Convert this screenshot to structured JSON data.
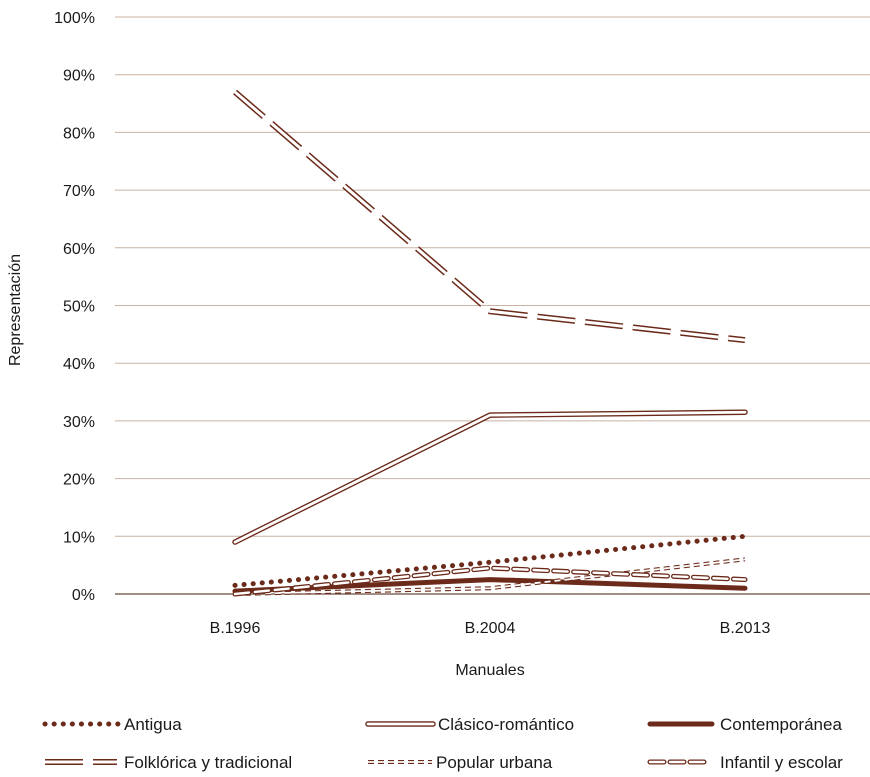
{
  "colors": {
    "series": "#6b2a1a",
    "grid": "#c8b2a2",
    "text": "#1a1a1a"
  },
  "chart_data": {
    "type": "line",
    "title": "",
    "xlabel": "Manuales",
    "ylabel": "Representación",
    "categories": [
      "B.1996",
      "B.2004",
      "B.2013"
    ],
    "ylim": [
      0,
      100
    ],
    "y_ticks": [
      0,
      10,
      20,
      30,
      40,
      50,
      60,
      70,
      80,
      90,
      100
    ],
    "y_tick_labels": [
      "0%",
      "10%",
      "20%",
      "30%",
      "40%",
      "50%",
      "60%",
      "70%",
      "80%",
      "90%",
      "100%"
    ],
    "grid": true,
    "legend_position": "bottom",
    "series": [
      {
        "name": "Antigua",
        "style": "dotted",
        "values": [
          1.5,
          5.5,
          10
        ]
      },
      {
        "name": "Clásico-romántico",
        "style": "double-solid",
        "values": [
          9,
          31,
          31.5
        ]
      },
      {
        "name": "Contemporánea",
        "style": "thick-solid",
        "values": [
          0.5,
          2.5,
          1
        ]
      },
      {
        "name": "Folklórica y tradicional",
        "style": "double-dashed",
        "values": [
          87,
          49,
          44
        ]
      },
      {
        "name": "Popular urbana",
        "style": "short-dashed-double",
        "values": [
          0,
          1,
          6
        ]
      },
      {
        "name": "Infantil y escolar",
        "style": "dashed-double",
        "values": [
          0,
          4.5,
          2.5
        ]
      }
    ]
  }
}
